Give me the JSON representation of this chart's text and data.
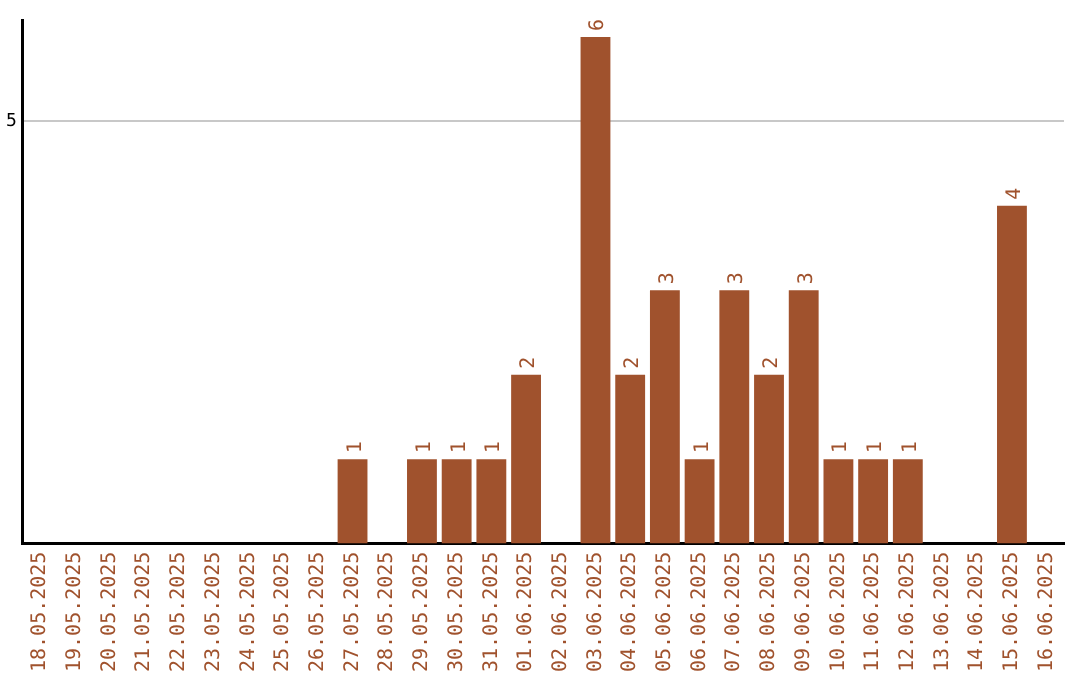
{
  "chart_data": {
    "type": "bar",
    "categories": [
      "18.05.2025",
      "19.05.2025",
      "20.05.2025",
      "21.05.2025",
      "22.05.2025",
      "23.05.2025",
      "24.05.2025",
      "25.05.2025",
      "26.05.2025",
      "27.05.2025",
      "28.05.2025",
      "29.05.2025",
      "30.05.2025",
      "31.05.2025",
      "01.06.2025",
      "02.06.2025",
      "03.06.2025",
      "04.06.2025",
      "05.06.2025",
      "06.06.2025",
      "07.06.2025",
      "08.06.2025",
      "09.06.2025",
      "10.06.2025",
      "11.06.2025",
      "12.06.2025",
      "13.06.2025",
      "14.06.2025",
      "15.06.2025",
      "16.06.2025"
    ],
    "values": [
      0,
      0,
      0,
      0,
      0,
      0,
      0,
      0,
      0,
      1,
      0,
      1,
      1,
      1,
      2,
      0,
      6,
      2,
      3,
      1,
      3,
      2,
      3,
      1,
      1,
      1,
      0,
      0,
      4,
      0
    ],
    "value_labels": [
      null,
      null,
      null,
      null,
      null,
      null,
      null,
      null,
      null,
      "1",
      null,
      "1",
      "1",
      "1",
      "2",
      null,
      "6",
      "2",
      "3",
      "1",
      "3",
      "2",
      "3",
      "1",
      "1",
      "1",
      null,
      null,
      "4",
      null
    ],
    "color": "#a0522d",
    "ylim": [
      0,
      6.2
    ],
    "yticks": [
      5
    ],
    "grid": "y",
    "legend": false
  }
}
